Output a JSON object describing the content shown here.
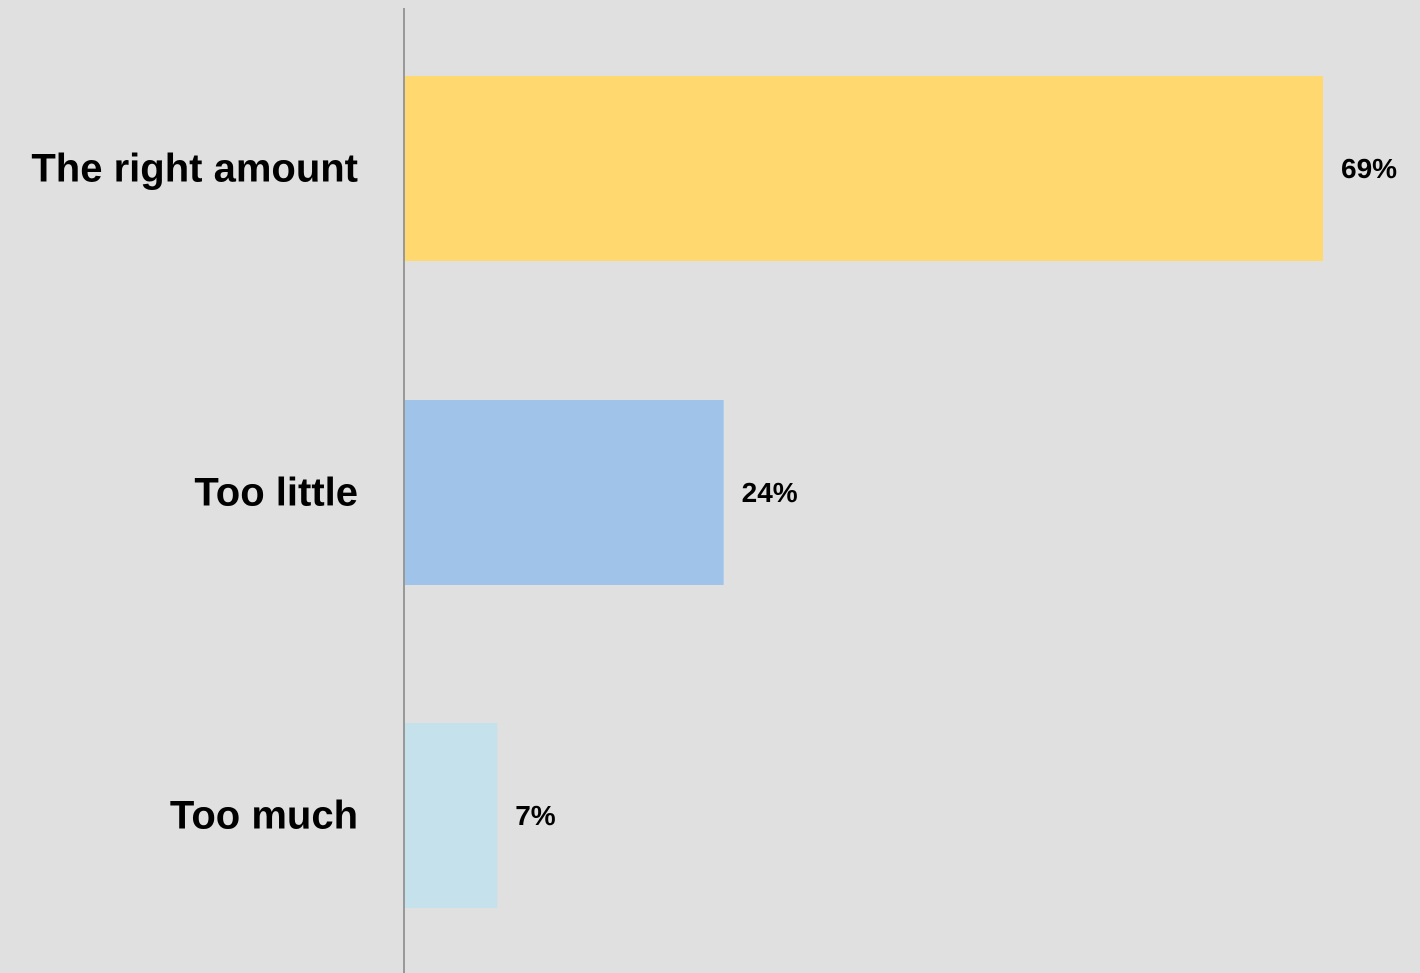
{
  "chart_data": {
    "type": "bar",
    "orientation": "horizontal",
    "title": "",
    "xlabel": "",
    "ylabel": "",
    "categories": [
      "The right amount",
      "Too little",
      "Too much"
    ],
    "values": [
      69,
      24,
      7
    ],
    "value_labels": [
      "69%",
      "24%",
      "7%"
    ],
    "colors": [
      "#ffd970",
      "#a0c3e9",
      "#c5e2ec"
    ],
    "xlim": [
      0,
      69
    ],
    "grid": false,
    "legend": "none",
    "axis_color": "#999999",
    "background": "#e0e0e0"
  }
}
